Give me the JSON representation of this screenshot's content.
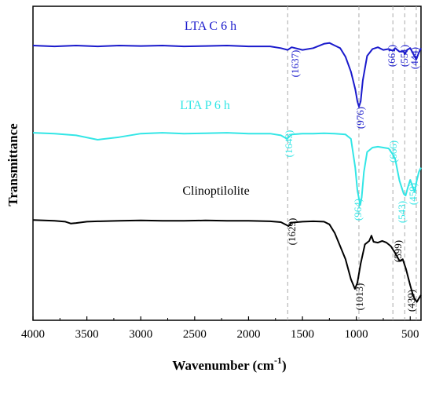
{
  "chart_data": {
    "type": "line",
    "xlabel": "Wavenumber (cm",
    "xlabel_sup": "-1",
    "xlabel_close": ")",
    "ylabel": "Transmittance",
    "xlim": [
      4000,
      400
    ],
    "x_reversed": true,
    "x_ticks": [
      4000,
      3500,
      3000,
      2500,
      2000,
      1500,
      1000,
      500
    ],
    "x_tick_labels": [
      "4000",
      "3500",
      "3000",
      "2500",
      "2000",
      "1500",
      "1000",
      "500"
    ],
    "y_ticks_shown": false,
    "grid": false,
    "reference_lines": [
      1637,
      976,
      661,
      551,
      444
    ],
    "series": [
      {
        "name": "LTA C 6 h",
        "color": "#1a1acc",
        "baseline_offset": 3.0,
        "points": [
          [
            4000,
            3.0
          ],
          [
            3800,
            2.99
          ],
          [
            3600,
            3.0
          ],
          [
            3400,
            2.99
          ],
          [
            3200,
            3.0
          ],
          [
            3000,
            2.995
          ],
          [
            2800,
            3.0
          ],
          [
            2600,
            2.99
          ],
          [
            2400,
            2.995
          ],
          [
            2200,
            3.0
          ],
          [
            2000,
            2.99
          ],
          [
            1800,
            2.99
          ],
          [
            1700,
            2.97
          ],
          [
            1637,
            2.95
          ],
          [
            1600,
            2.98
          ],
          [
            1500,
            2.95
          ],
          [
            1400,
            2.97
          ],
          [
            1300,
            3.02
          ],
          [
            1250,
            3.03
          ],
          [
            1200,
            3.0
          ],
          [
            1150,
            2.97
          ],
          [
            1100,
            2.87
          ],
          [
            1050,
            2.7
          ],
          [
            1010,
            2.5
          ],
          [
            990,
            2.36
          ],
          [
            976,
            2.3
          ],
          [
            960,
            2.36
          ],
          [
            940,
            2.6
          ],
          [
            900,
            2.88
          ],
          [
            850,
            2.96
          ],
          [
            800,
            2.98
          ],
          [
            750,
            2.95
          ],
          [
            700,
            2.96
          ],
          [
            661,
            2.94
          ],
          [
            640,
            2.97
          ],
          [
            600,
            2.93
          ],
          [
            560,
            2.93
          ],
          [
            551,
            2.9
          ],
          [
            530,
            2.95
          ],
          [
            500,
            2.97
          ],
          [
            470,
            2.9
          ],
          [
            444,
            2.84
          ],
          [
            420,
            2.92
          ],
          [
            400,
            2.97
          ]
        ]
      },
      {
        "name": "LTA P 6 h",
        "color": "#33e6e6",
        "baseline_offset": 2.0,
        "points": [
          [
            4000,
            2.0
          ],
          [
            3800,
            1.99
          ],
          [
            3600,
            1.97
          ],
          [
            3400,
            1.92
          ],
          [
            3200,
            1.95
          ],
          [
            3000,
            1.99
          ],
          [
            2800,
            2.0
          ],
          [
            2600,
            1.99
          ],
          [
            2400,
            1.995
          ],
          [
            2200,
            2.0
          ],
          [
            2000,
            1.99
          ],
          [
            1800,
            1.99
          ],
          [
            1700,
            1.97
          ],
          [
            1643,
            1.93
          ],
          [
            1600,
            1.98
          ],
          [
            1500,
            1.99
          ],
          [
            1400,
            1.99
          ],
          [
            1300,
            1.995
          ],
          [
            1200,
            1.99
          ],
          [
            1100,
            1.98
          ],
          [
            1050,
            1.93
          ],
          [
            1010,
            1.6
          ],
          [
            990,
            1.34
          ],
          [
            964,
            1.17
          ],
          [
            950,
            1.26
          ],
          [
            930,
            1.55
          ],
          [
            900,
            1.78
          ],
          [
            850,
            1.83
          ],
          [
            800,
            1.84
          ],
          [
            750,
            1.83
          ],
          [
            700,
            1.82
          ],
          [
            666,
            1.76
          ],
          [
            640,
            1.7
          ],
          [
            600,
            1.45
          ],
          [
            560,
            1.3
          ],
          [
            543,
            1.28
          ],
          [
            520,
            1.38
          ],
          [
            500,
            1.46
          ],
          [
            480,
            1.39
          ],
          [
            459,
            1.32
          ],
          [
            440,
            1.45
          ],
          [
            420,
            1.55
          ],
          [
            400,
            1.6
          ]
        ]
      },
      {
        "name": "Clinoptilolite",
        "color": "#000000",
        "baseline_offset": 1.0,
        "points": [
          [
            4000,
            1.0
          ],
          [
            3800,
            0.99
          ],
          [
            3700,
            0.98
          ],
          [
            3650,
            0.96
          ],
          [
            3600,
            0.965
          ],
          [
            3500,
            0.98
          ],
          [
            3400,
            0.985
          ],
          [
            3200,
            0.99
          ],
          [
            3000,
            0.995
          ],
          [
            2800,
            0.99
          ],
          [
            2600,
            0.99
          ],
          [
            2400,
            0.995
          ],
          [
            2200,
            0.99
          ],
          [
            2000,
            0.99
          ],
          [
            1800,
            0.985
          ],
          [
            1700,
            0.975
          ],
          [
            1629,
            0.93
          ],
          [
            1600,
            0.97
          ],
          [
            1500,
            0.98
          ],
          [
            1400,
            0.985
          ],
          [
            1300,
            0.98
          ],
          [
            1250,
            0.95
          ],
          [
            1200,
            0.85
          ],
          [
            1150,
            0.7
          ],
          [
            1100,
            0.55
          ],
          [
            1050,
            0.32
          ],
          [
            1013,
            0.21
          ],
          [
            990,
            0.28
          ],
          [
            960,
            0.5
          ],
          [
            920,
            0.72
          ],
          [
            880,
            0.76
          ],
          [
            860,
            0.82
          ],
          [
            840,
            0.75
          ],
          [
            800,
            0.74
          ],
          [
            760,
            0.76
          ],
          [
            720,
            0.74
          ],
          [
            680,
            0.7
          ],
          [
            640,
            0.62
          ],
          [
            599,
            0.53
          ],
          [
            570,
            0.55
          ],
          [
            540,
            0.44
          ],
          [
            500,
            0.25
          ],
          [
            470,
            0.12
          ],
          [
            439,
            0.06
          ],
          [
            420,
            0.1
          ],
          [
            400,
            0.14
          ]
        ]
      }
    ]
  },
  "series_labels": {
    "lta_c": "LTA C 6 h",
    "lta_p": "LTA P 6 h",
    "clino": "Clinoptilolite"
  },
  "peak_labels": {
    "lta_c": [
      "(1637)",
      "(976)",
      "(661)",
      "(551)",
      "(444)"
    ],
    "lta_p": [
      "(1643)",
      "(964)",
      "(666)",
      "(543)",
      "(459)"
    ],
    "clino": [
      "(1629)",
      "(1013)",
      "(599)",
      "(439)"
    ]
  },
  "colors": {
    "lta_c": "#1a1acc",
    "lta_p": "#33e6e6",
    "clino": "#000000",
    "reference_line": "#aaaaaa"
  }
}
